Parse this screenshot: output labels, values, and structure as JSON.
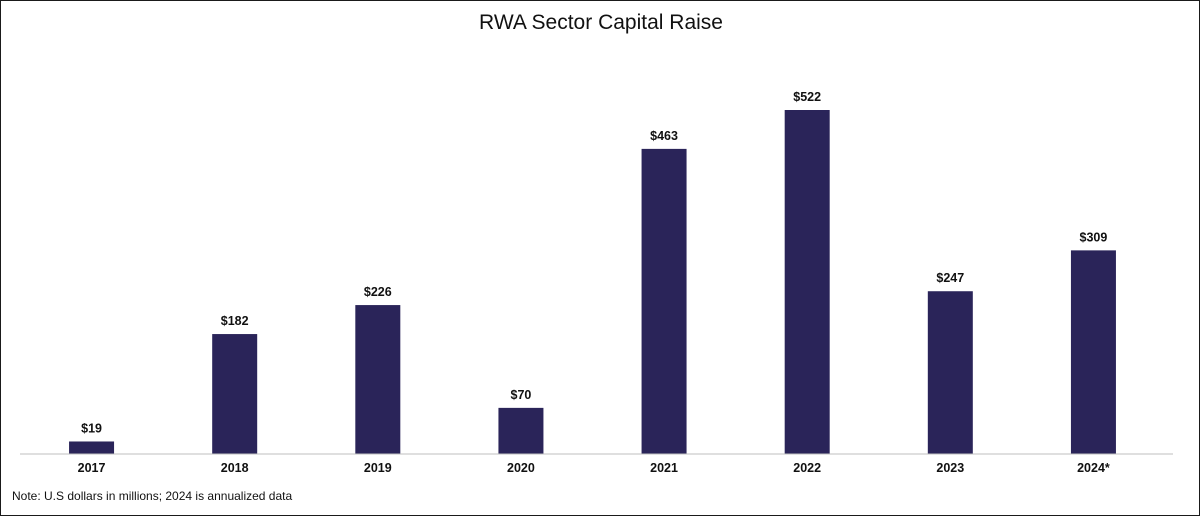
{
  "chart_data": {
    "type": "bar",
    "title": "RWA Sector Capital Raise",
    "categories": [
      "2017",
      "2018",
      "2019",
      "2020",
      "2021",
      "2022",
      "2023",
      "2024*"
    ],
    "values": [
      19,
      182,
      226,
      70,
      463,
      522,
      247,
      309
    ],
    "data_labels": [
      "$19",
      "$182",
      "$226",
      "$70",
      "$463",
      "$522",
      "$247",
      "$309"
    ],
    "xlabel": "",
    "ylabel": "",
    "ylim": [
      0,
      522
    ],
    "grid": false,
    "legend": "none",
    "bar_color": "#2a2459",
    "axis_color": "#bfbfbf",
    "note": "Note: U.S dollars in millions; 2024 is annualized data"
  }
}
